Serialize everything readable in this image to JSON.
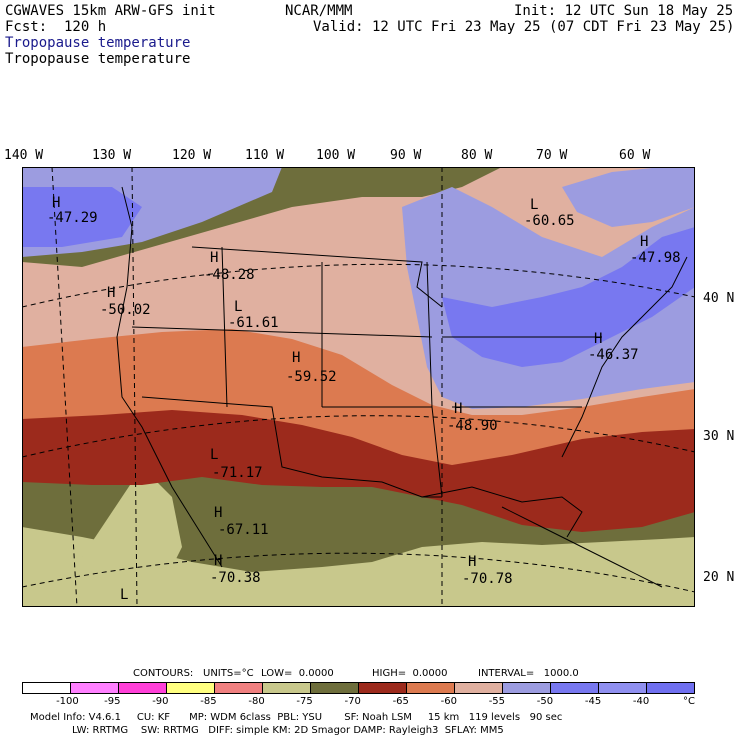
{
  "header": {
    "model": "CGWAVES 15km ARW-GFS init",
    "center": "NCAR/MMM",
    "init": "Init: 12 UTC Sun 18 May 25",
    "fcst": "Fcst:  120 h",
    "valid": "Valid: 12 UTC Fri 23 May 25 (07 CDT Fri 23 May 25)",
    "field_blue": "Tropopause temperature",
    "field_black": "Tropopause temperature"
  },
  "lon_labels": [
    "140 W",
    "130 W",
    "120 W",
    "110 W",
    "100 W",
    "90 W",
    "80 W",
    "70 W",
    "60 W"
  ],
  "lat_labels": [
    "40 N",
    "30 N",
    "20 N"
  ],
  "extrema": [
    {
      "type": "H",
      "value": "-47.29"
    },
    {
      "type": "H",
      "value": "-48.28"
    },
    {
      "type": "H",
      "value": "-50.02"
    },
    {
      "type": "L",
      "value": "-61.61"
    },
    {
      "type": "H",
      "value": "-59.52"
    },
    {
      "type": "L",
      "value": "-60.65"
    },
    {
      "type": "H",
      "value": "-47.98"
    },
    {
      "type": "H",
      "value": "-46.37"
    },
    {
      "type": "H",
      "value": "-48.90"
    },
    {
      "type": "L",
      "value": "-71.17"
    },
    {
      "type": "H",
      "value": "-67.11"
    },
    {
      "type": "H",
      "value": "-70.38"
    },
    {
      "type": "H",
      "value": "-70.78"
    },
    {
      "type": "L",
      "value": ""
    }
  ],
  "contours": {
    "label": "CONTOURS:",
    "units": "UNITS=°C",
    "low": "LOW=  0.0000",
    "high": "HIGH=  0.0000",
    "interval": "INTERVAL=   1000.0"
  },
  "colorbar": {
    "colors": [
      "#ffffff",
      "#ff80ff",
      "#ff40d8",
      "#ffff80",
      "#f08080",
      "#c8c88c",
      "#6e6e3c",
      "#9c2a1c",
      "#dc7a50",
      "#e0b0a0",
      "#9c9ce0",
      "#7878f0",
      "#9090f0",
      "#7070f0"
    ],
    "labels": [
      "-100",
      "-95",
      "-90",
      "-85",
      "-80",
      "-75",
      "-70",
      "-65",
      "-60",
      "-55",
      "-50",
      "-45",
      "-40",
      "°C"
    ]
  },
  "footer": {
    "line1": "Model Info: V4.6.1     CU: KF      MP: WDM 6class  PBL: YSU       SF: Noah LSM     15 km   119 levels   90 sec",
    "line2": "LW: RRTMG    SW: RRTMG   DIFF: simple KM: 2D Smagor DAMP: Rayleigh3  SFLAY: MM5"
  }
}
